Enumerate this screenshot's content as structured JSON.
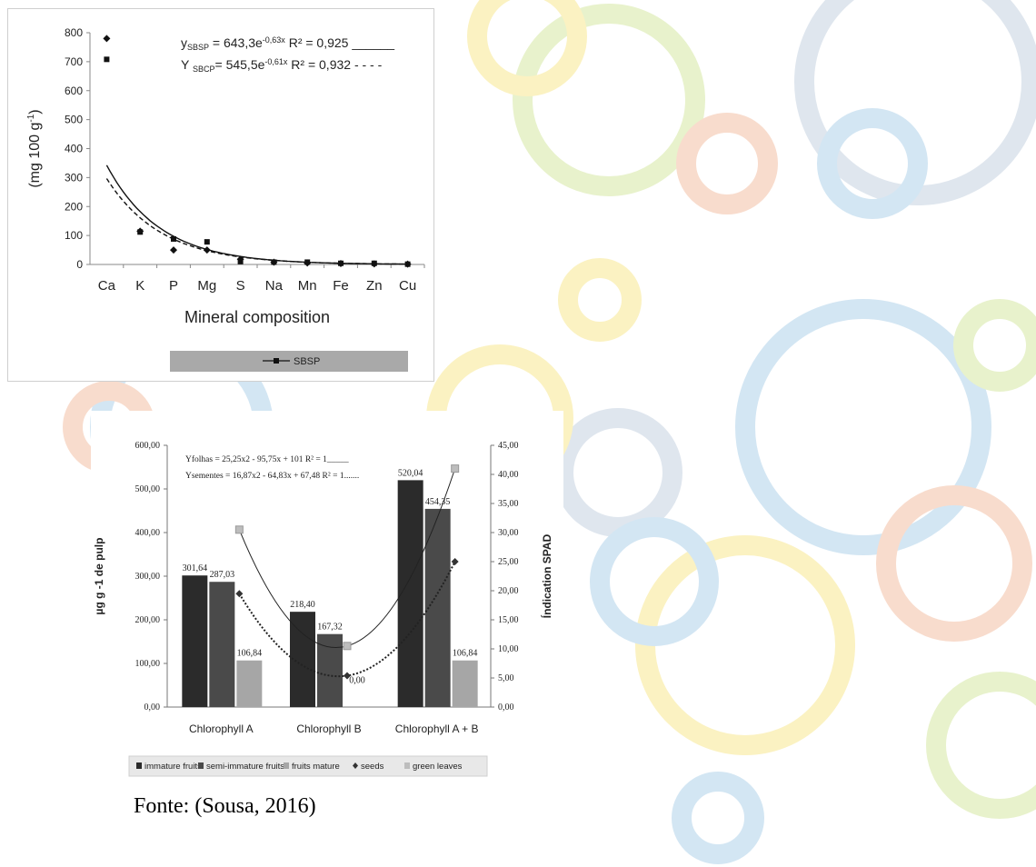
{
  "figure": {
    "source": "Fonte: (Sousa, 2016)"
  },
  "colors": {
    "ring_blue": "#d3e6f3",
    "ring_green": "#e8f2cc",
    "ring_orange": "#f8dccd",
    "ring_yellow": "#fbf2c2",
    "ring_gray": "#dfe6ee",
    "bar_immature": "#2b2b2b",
    "bar_semi": "#4a4a4a",
    "bar_mature": "#a6a6a6",
    "legend_bar": "#a9a9a9"
  },
  "chart_data": [
    {
      "type": "scatter",
      "xlabel": "Mineral composition",
      "ylabel": "(mg 100 g",
      "ylabel_sup": "-1",
      "ylabel_end": ")",
      "categories": [
        "Ca",
        "K",
        "P",
        "Mg",
        "S",
        "Na",
        "Mn",
        "Fe",
        "Zn",
        "Cu"
      ],
      "ylim": [
        0,
        800
      ],
      "yticks": [
        "0",
        "100",
        "200",
        "300",
        "400",
        "500",
        "600",
        "700",
        "800"
      ],
      "series": [
        {
          "marker": "diamond",
          "values": [
            780,
            115,
            50,
            50,
            18,
            8,
            5,
            3,
            2,
            1
          ]
        },
        {
          "name": "SBSP",
          "marker": "square",
          "values": [
            708,
            112,
            88,
            78,
            10,
            8,
            8,
            4,
            4,
            1
          ]
        }
      ],
      "trendlines": [
        {
          "style": "solid",
          "a": 643.3,
          "b": 0.63
        },
        {
          "style": "dashed",
          "a": 545.5,
          "b": 0.61
        }
      ],
      "equations": [
        {
          "prefix": "y",
          "sub": "SBSP",
          "mid": " = 643,3e",
          "sup": "-0,63x",
          "tail": " R² = 0,925 ______"
        },
        {
          "prefix": "Y ",
          "sub": "SBCP",
          "mid": "= 545,5e",
          "sup": "-0,61x",
          "tail": " R² = 0,932 - - - -"
        }
      ],
      "legend": {
        "label": "SBSP",
        "placement": "bottom"
      }
    },
    {
      "type": "bar",
      "categories": [
        "Chlorophyll A",
        "Chlorophyll B",
        "Chlorophyll A + B"
      ],
      "ylabel_left": "µg g -1 de pulp",
      "ylabel_right": "Índication SPAD",
      "ylim_left": [
        0,
        600
      ],
      "ylim_right": [
        0,
        45
      ],
      "yticks_left": [
        "0,00",
        "100,00",
        "200,00",
        "300,00",
        "400,00",
        "500,00",
        "600,00"
      ],
      "yticks_right": [
        "0,00",
        "5,00",
        "10,00",
        "15,00",
        "20,00",
        "25,00",
        "30,00",
        "35,00",
        "40,00",
        "45,00"
      ],
      "series": [
        {
          "name": "immature fruits",
          "kind": "bar",
          "values": [
            301.64,
            218.4,
            520.04
          ],
          "labels": [
            "301,64",
            "218,40",
            "520,04"
          ]
        },
        {
          "name": "semi-immature fruits",
          "kind": "bar",
          "values": [
            287.03,
            167.32,
            454.35
          ],
          "labels": [
            "287,03",
            "167,32",
            "454,35"
          ]
        },
        {
          "name": "fruits mature",
          "kind": "bar",
          "values": [
            106.84,
            0,
            106.84
          ],
          "labels": [
            "106,84",
            "0,00",
            "106,84"
          ]
        },
        {
          "name": "seeds",
          "kind": "point",
          "axis": "right",
          "values": [
            19.5,
            5.4,
            25
          ]
        },
        {
          "name": "green leaves",
          "kind": "point",
          "axis": "right",
          "values": [
            30.5,
            10.5,
            41
          ]
        }
      ],
      "equations": [
        "Yfolhas = 25,25x2 - 95,75x + 101 R² = 1_____",
        "Ysementes = 16,87x2 - 64,83x + 67,48 R² = 1......."
      ],
      "legend": {
        "placement": "bottom"
      }
    }
  ]
}
